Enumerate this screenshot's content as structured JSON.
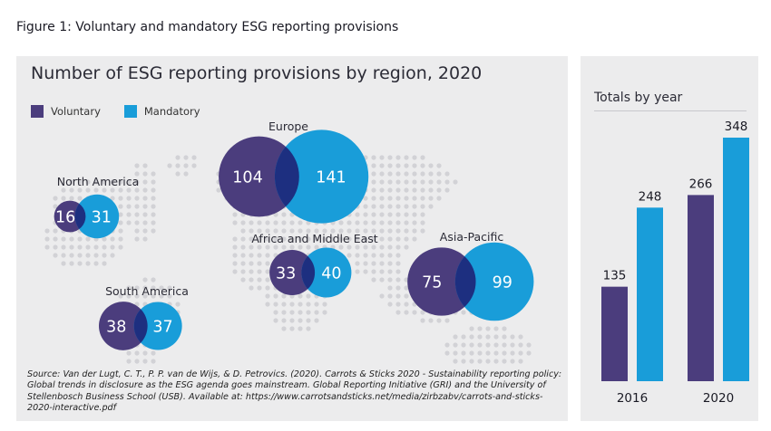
{
  "figure_title": "Figure 1: Voluntary and mandatory ESG reporting provisions",
  "source_text": "Source: Van der Lugt, C. T., P. P. van de Wijs, & D. Petrovics. (2020). Carrots & Sticks 2020 - Sustainability reporting policy: Global trends in disclosure as the ESG agenda goes mainstream. Global Reporting Initiative (GRI) and the University of Stellenbosch Business School (USB). Available at: https://www.carrotsandsticks.net/media/zirbzabv/carrots-and-sticks-2020-interactive.pdf",
  "colors": {
    "voluntary": "#4b3d7d",
    "mandatory": "#199dd9",
    "panel": "#ececed",
    "dots": "#d2d2d6"
  },
  "chart_data": [
    {
      "type": "bubble",
      "title": "Number of ESG reporting provisions by region, 2020",
      "legend": [
        "Voluntary",
        "Mandatory"
      ],
      "legend_placement": "top-left",
      "regions": [
        {
          "name": "North America",
          "voluntary": 16,
          "mandatory": 31
        },
        {
          "name": "Europe",
          "voluntary": 104,
          "mandatory": 141
        },
        {
          "name": "Africa and Middle East",
          "voluntary": 33,
          "mandatory": 40
        },
        {
          "name": "South America",
          "voluntary": 38,
          "mandatory": 37
        },
        {
          "name": "Asia-Pacific",
          "voluntary": 75,
          "mandatory": 99
        }
      ]
    },
    {
      "type": "bar",
      "title": "Totals by year",
      "categories": [
        "2016",
        "2020"
      ],
      "series": [
        {
          "name": "Voluntary",
          "values": [
            135,
            266
          ]
        },
        {
          "name": "Mandatory",
          "values": [
            248,
            348
          ]
        }
      ],
      "ylim": [
        0,
        348
      ],
      "grid": false
    }
  ]
}
